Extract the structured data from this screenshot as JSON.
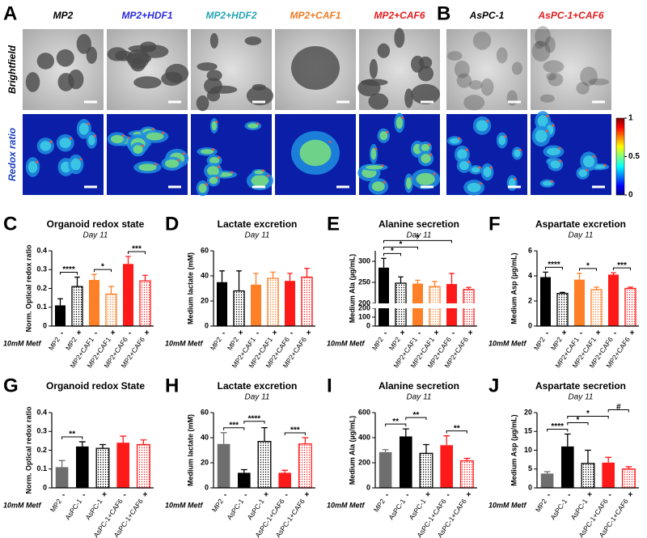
{
  "images": {
    "letters": [
      "A",
      "B"
    ],
    "columns": [
      {
        "label": "MP2",
        "color": "#000000"
      },
      {
        "label": "MP2+HDF1",
        "color": "#2a2ae0"
      },
      {
        "label": "MP2+HDF2",
        "color": "#27a3b3"
      },
      {
        "label": "MP2+CAF1",
        "color": "#f07a22"
      },
      {
        "label": "MP2+CAF6",
        "color": "#e41b1b"
      },
      {
        "label": "AsPC-1",
        "color": "#000000"
      },
      {
        "label": "AsPC-1+CAF6",
        "color": "#e41b1b"
      }
    ],
    "rows": [
      {
        "label": "Brightfield",
        "color": "#000000"
      },
      {
        "label": "Redox ratio",
        "color": "#1a3fbf"
      }
    ],
    "colorbar_lim": [
      0,
      1
    ],
    "colorbar_ticks": [
      1,
      0.5,
      0
    ]
  },
  "chart_data": [
    {
      "type": "bar",
      "letter": "C",
      "title": "Organoid redox  state",
      "subtitle": "Day 11",
      "ylabel": "Norm. Optical redox ratio",
      "categories": [
        "MP2",
        "MP2",
        "MP2+CAF1",
        "MP2+CAF1",
        "MP2+CAF6",
        "MP2+CAF6"
      ],
      "treatment_label": "10mM Metf",
      "treatment": [
        "-",
        "+",
        "-",
        "+",
        "-",
        "+"
      ],
      "values": [
        0.11,
        0.21,
        0.245,
        0.17,
        0.33,
        0.24
      ],
      "errors": [
        0.035,
        0.05,
        0.03,
        0.04,
        0.04,
        0.03
      ],
      "colors": [
        "#000000",
        "#000000",
        "#ff7f27",
        "#ff7f27",
        "#ff1a1a",
        "#ff1a1a"
      ],
      "hatched": [
        false,
        true,
        false,
        true,
        false,
        true
      ],
      "ylim": [
        0,
        0.4
      ],
      "yticks": [
        0,
        0.1,
        0.2,
        0.3,
        0.4
      ],
      "significance": [
        "****",
        "*",
        "***"
      ]
    },
    {
      "type": "bar",
      "letter": "D",
      "title": "Lactate excretion",
      "subtitle": "Day 11",
      "ylabel": "Medium lactate (mM)",
      "categories": [
        "MP2",
        "MP2",
        "MP2+CAF1",
        "MP2+CAF1",
        "MP2+CAF6",
        "MP2+CAF6"
      ],
      "treatment_label": "10mM Metf",
      "treatment": [
        "-",
        "+",
        "-",
        "+",
        "-",
        "+"
      ],
      "values": [
        35,
        28,
        33,
        38,
        36,
        39
      ],
      "errors": [
        9,
        16,
        9,
        5,
        6,
        7
      ],
      "colors": [
        "#000000",
        "#000000",
        "#ff7f27",
        "#ff7f27",
        "#ff1a1a",
        "#ff1a1a"
      ],
      "hatched": [
        false,
        true,
        false,
        true,
        false,
        true
      ],
      "ylim": [
        0,
        60
      ],
      "yticks": [
        0,
        20,
        40,
        60
      ],
      "significance": []
    },
    {
      "type": "bar",
      "letter": "E",
      "title": "Alanine secretion",
      "subtitle": "Day 11",
      "ylabel": "Medium Ala (µg/mL)",
      "categories": [
        "MP2",
        "MP2",
        "MP2+CAF1",
        "MP2+CAF1",
        "MP2+CAF6",
        "MP2+CAF6"
      ],
      "treatment_label": "10mM Metf",
      "treatment": [
        "-",
        "+",
        "-",
        "+",
        "-",
        "+"
      ],
      "values": [
        285,
        248,
        247,
        240,
        246,
        233
      ],
      "errors": [
        22,
        15,
        8,
        12,
        25,
        5
      ],
      "colors": [
        "#000000",
        "#000000",
        "#ff7f27",
        "#ff7f27",
        "#ff1a1a",
        "#ff1a1a"
      ],
      "hatched": [
        false,
        true,
        false,
        true,
        false,
        true
      ],
      "ylim_lower": [
        0,
        200
      ],
      "yticks_lower": [
        0,
        100,
        200
      ],
      "ylim": [
        200,
        325
      ],
      "yticks": [
        200,
        250,
        300
      ],
      "significance": [
        "*",
        "*",
        "*"
      ]
    },
    {
      "type": "bar",
      "letter": "F",
      "title": "Aspartate excretion",
      "subtitle": "Day 11",
      "ylabel": "Medium Asp  (µg/mL)",
      "categories": [
        "MP2",
        "MP2",
        "MP2+CAF1",
        "MP2+CAF1",
        "MP2+CAF6",
        "MP2+CAF6"
      ],
      "treatment_label": "10mM Metf",
      "treatment": [
        "-",
        "+",
        "-",
        "+",
        "-",
        "+"
      ],
      "values": [
        3.9,
        2.6,
        3.7,
        2.9,
        4.1,
        3.0
      ],
      "errors": [
        0.4,
        0.08,
        0.5,
        0.2,
        0.15,
        0.1
      ],
      "colors": [
        "#000000",
        "#000000",
        "#ff7f27",
        "#ff7f27",
        "#ff1a1a",
        "#ff1a1a"
      ],
      "hatched": [
        false,
        true,
        false,
        true,
        false,
        true
      ],
      "ylim": [
        0,
        6
      ],
      "yticks": [
        0,
        2,
        4,
        6
      ],
      "significance": [
        "****",
        "*",
        "***"
      ]
    },
    {
      "type": "bar",
      "letter": "G",
      "title": "Organoid redox  State",
      "ylabel": "Norm. Optical redox ratio",
      "categories": [
        "MP2",
        "AsPC-1",
        "AsPC-1",
        "AsPC-1+CAF6",
        "AsPC-1+CAF6"
      ],
      "treatment_label": "10mM Metf",
      "treatment": [
        "-",
        "-",
        "+",
        "-",
        "+"
      ],
      "values": [
        0.11,
        0.22,
        0.21,
        0.24,
        0.23
      ],
      "errors": [
        0.035,
        0.025,
        0.02,
        0.035,
        0.025
      ],
      "colors": [
        "#6e6e6e",
        "#000000",
        "#000000",
        "#ff1a1a",
        "#ff1a1a"
      ],
      "hatched": [
        false,
        false,
        true,
        false,
        true
      ],
      "ylim": [
        0,
        0.4
      ],
      "yticks": [
        0,
        0.1,
        0.2,
        0.3,
        0.4
      ],
      "significance": [
        "**"
      ]
    },
    {
      "type": "bar",
      "letter": "H",
      "title": "Lactate excretion",
      "subtitle": "Day 11",
      "ylabel": "Medium lactate (mM)",
      "categories": [
        "MP2",
        "AsPC-1",
        "AsPC-1",
        "AsPC-1+CAF6",
        "AsPC-1+CAF6"
      ],
      "treatment_label": "10mM Metf",
      "treatment": [
        "-",
        "-",
        "+",
        "-",
        "+"
      ],
      "values": [
        35,
        12,
        37,
        12,
        35
      ],
      "errors": [
        9,
        2.5,
        11,
        2,
        5
      ],
      "colors": [
        "#6e6e6e",
        "#000000",
        "#000000",
        "#ff1a1a",
        "#ff1a1a"
      ],
      "hatched": [
        false,
        false,
        true,
        false,
        true
      ],
      "ylim": [
        0,
        60
      ],
      "yticks": [
        0,
        20,
        40,
        60
      ],
      "significance": [
        "***",
        "****",
        "***"
      ]
    },
    {
      "type": "bar",
      "letter": "I",
      "title": "Alanine secretion",
      "subtitle": "Day 11",
      "ylabel": "Medium Ala (µg/mL)",
      "categories": [
        "MP2",
        "AsPC-1",
        "AsPC-1",
        "AsPC-1+CAF6",
        "AsPC-1+CAF6"
      ],
      "treatment_label": "10mM Metf",
      "treatment": [
        "-",
        "-",
        "+",
        "-",
        "+"
      ],
      "values": [
        285,
        410,
        275,
        340,
        215
      ],
      "errors": [
        20,
        60,
        70,
        75,
        20
      ],
      "colors": [
        "#6e6e6e",
        "#000000",
        "#000000",
        "#ff1a1a",
        "#ff1a1a"
      ],
      "hatched": [
        false,
        false,
        true,
        false,
        true
      ],
      "ylim": [
        0,
        600
      ],
      "yticks": [
        0,
        200,
        400,
        600
      ],
      "significance": [
        "**",
        "**",
        "**"
      ]
    },
    {
      "type": "bar",
      "letter": "J",
      "title": "Aspartate secretion",
      "subtitle": "Day 11",
      "ylabel": "Medium Asp  (µg/mL)",
      "categories": [
        "MP2",
        "AsPC-1",
        "AsPC-1",
        "AsPC-1+CAF6",
        "AsPC-1+CAF6"
      ],
      "treatment_label": "10mM Metf",
      "treatment": [
        "-",
        "-",
        "+",
        "-",
        "+"
      ],
      "values": [
        3.8,
        11,
        6.5,
        6.7,
        5
      ],
      "errors": [
        0.5,
        3.3,
        3.5,
        1.4,
        0.6
      ],
      "colors": [
        "#6e6e6e",
        "#000000",
        "#000000",
        "#ff1a1a",
        "#ff1a1a"
      ],
      "hatched": [
        false,
        false,
        true,
        false,
        true
      ],
      "ylim": [
        0,
        20
      ],
      "yticks": [
        0,
        5,
        10,
        15,
        20
      ],
      "significance": [
        "****",
        "*",
        "*",
        "#"
      ]
    }
  ]
}
